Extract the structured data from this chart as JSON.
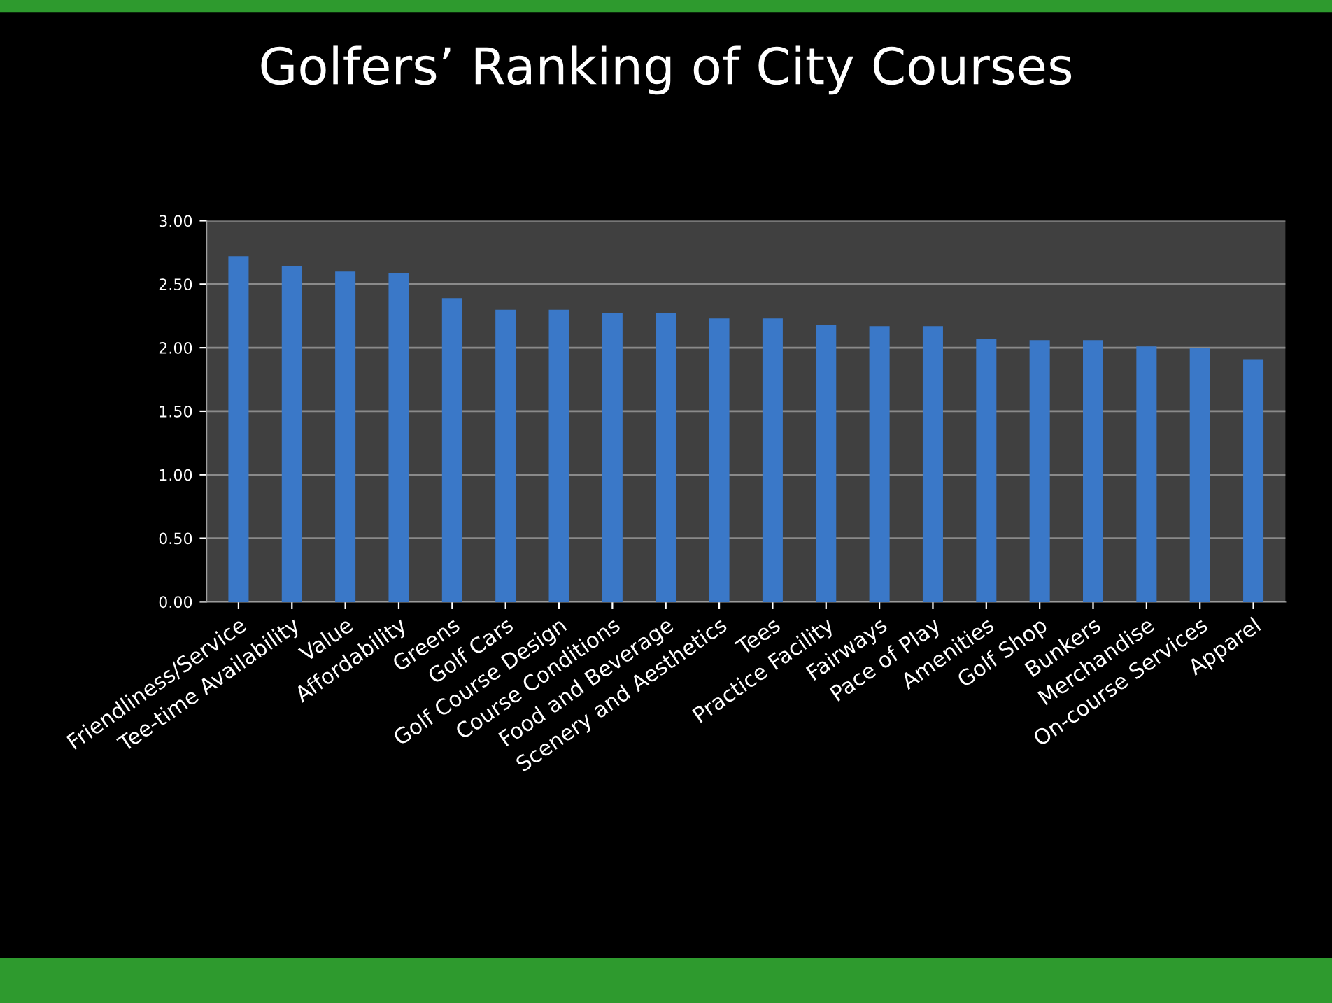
{
  "chart_data": {
    "type": "bar",
    "title": "Golfers’ Ranking of City Courses",
    "categories": [
      "Friendliness/Service",
      "Tee-time Availability",
      "Value",
      "Affordability",
      "Greens",
      "Golf Cars",
      "Golf Course Design",
      "Course Conditions",
      "Food and Beverage",
      "Scenery and Aesthetics",
      "Tees",
      "Practice Facility",
      "Fairways",
      "Pace of Play",
      "Amenities",
      "Golf Shop",
      "Bunkers",
      "Merchandise",
      "On-course Services",
      "Apparel"
    ],
    "values": [
      2.72,
      2.64,
      2.6,
      2.59,
      2.39,
      2.3,
      2.3,
      2.27,
      2.27,
      2.23,
      2.23,
      2.18,
      2.17,
      2.17,
      2.07,
      2.06,
      2.06,
      2.01,
      2.0,
      1.91
    ],
    "color": "#3a78c8",
    "ylim": [
      0,
      3
    ],
    "yticks": [
      {
        "value": 0,
        "label": "0.00"
      },
      {
        "value": 0.5,
        "label": "0.50"
      },
      {
        "value": 1,
        "label": "1.00"
      },
      {
        "value": 1.5,
        "label": "1.50"
      },
      {
        "value": 2,
        "label": "2.00"
      },
      {
        "value": 2.5,
        "label": "2.50"
      },
      {
        "value": 3,
        "label": "3.00"
      }
    ],
    "grid": "y"
  }
}
